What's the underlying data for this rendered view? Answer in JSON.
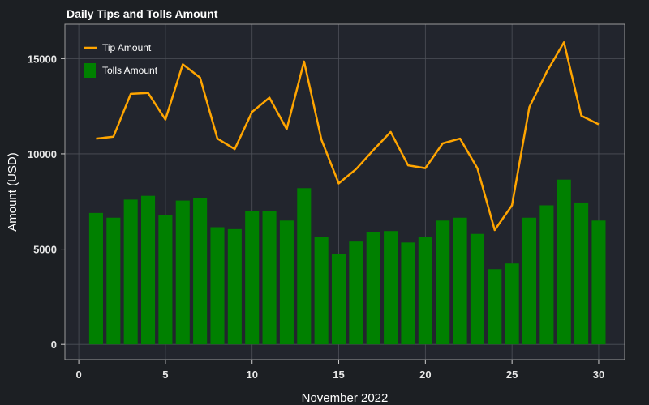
{
  "chart_data": {
    "type": "bar+line",
    "title": "Daily Tips and Tolls Amount",
    "xlabel": "November 2022",
    "ylabel": "Amount (USD)",
    "x": [
      1,
      2,
      3,
      4,
      5,
      6,
      7,
      8,
      9,
      10,
      11,
      12,
      13,
      14,
      15,
      16,
      17,
      18,
      19,
      20,
      21,
      22,
      23,
      24,
      25,
      26,
      27,
      28,
      29,
      30
    ],
    "series": [
      {
        "name": "Tip Amount",
        "type": "line",
        "color": "#ffa500",
        "values": [
          10800,
          10900,
          13150,
          13200,
          11800,
          14700,
          14000,
          10800,
          10250,
          12200,
          12950,
          11300,
          14850,
          10750,
          8450,
          9200,
          10200,
          11150,
          9400,
          9250,
          10550,
          10800,
          9250,
          6000,
          7300,
          12450,
          14300,
          15850,
          12000,
          11550
        ]
      },
      {
        "name": "Tolls Amount",
        "type": "bar",
        "color": "#008000",
        "values": [
          6900,
          6650,
          7600,
          7800,
          6800,
          7550,
          7700,
          6150,
          6050,
          7000,
          7000,
          6500,
          8200,
          5650,
          4750,
          5400,
          5900,
          5950,
          5350,
          5650,
          6500,
          6650,
          5800,
          3950,
          4250,
          6650,
          7300,
          8650,
          7450,
          6500
        ]
      }
    ],
    "xlim": [
      -0.8,
      31.5
    ],
    "ylim": [
      -800,
      16800
    ],
    "xticks": [
      0,
      5,
      10,
      15,
      20,
      25,
      30
    ],
    "yticks": [
      0,
      5000,
      10000,
      15000
    ],
    "grid": true,
    "legend": "top-left"
  }
}
